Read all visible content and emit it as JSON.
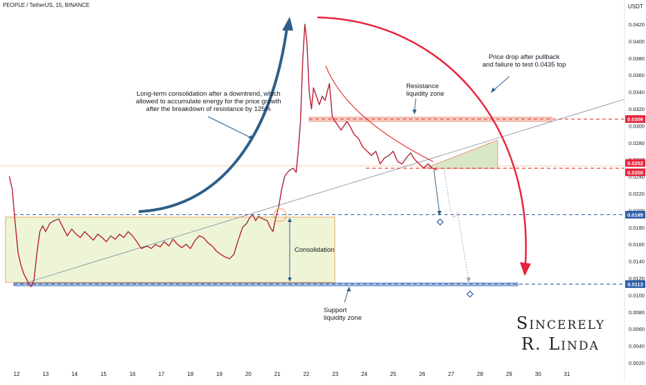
{
  "header": {
    "symbol": "PEOPLE / TetherUS, 15, BINANCE",
    "currency": "USDT"
  },
  "colors": {
    "candle_up": "#089981",
    "candle_down": "#f23645",
    "price_line": "#b71c33",
    "resistance_line": "#e53935",
    "support_line": "#2f5fa8",
    "consolidation_fill": "#eef5d6",
    "consolidation_border": "#f2a55b",
    "resistance_zone_fill": "#f8d0c8",
    "triangle_fill": "#d8e7c4",
    "arrow_blue": "#2e5f8a",
    "arrow_red": "#e8233c",
    "trendline": "#8a93a6"
  },
  "chart_data": {
    "type": "line",
    "title": "PEOPLE / TetherUS, 15, BINANCE",
    "ylabel": "USDT",
    "ylim": [
      0.002,
      0.044
    ],
    "y_ticks": [
      "0.0420",
      "0.0400",
      "0.0380",
      "0.0360",
      "0.0340",
      "0.0320",
      "0.0300",
      "0.0280",
      "0.0260",
      "0.0240",
      "0.0220",
      "0.0200",
      "0.0180",
      "0.0160",
      "0.0140",
      "0.0120",
      "0.0100",
      "0.0080",
      "0.0060",
      "0.0040",
      "0.0020"
    ],
    "y_tick_values": [
      0.042,
      0.04,
      0.038,
      0.036,
      0.034,
      0.032,
      0.03,
      0.028,
      0.026,
      0.024,
      0.022,
      0.02,
      0.018,
      0.016,
      0.014,
      0.012,
      0.01,
      0.008,
      0.006,
      0.004,
      0.002
    ],
    "x_ticks": [
      "12",
      "13",
      "14",
      "15",
      "16",
      "17",
      "18",
      "19",
      "20",
      "21",
      "22",
      "23",
      "24",
      "25",
      "26",
      "27",
      "28",
      "29",
      "30",
      "31"
    ],
    "x_tick_values": [
      12,
      13,
      14,
      15,
      16,
      17,
      18,
      19,
      20,
      21,
      22,
      23,
      24,
      25,
      26,
      27,
      28,
      29,
      30,
      31
    ],
    "xlim": [
      11.75,
      32.4
    ],
    "series": [
      {
        "x": [
          11.75,
          11.85,
          11.95,
          12.05,
          12.15,
          12.25,
          12.4,
          12.5,
          12.6,
          12.7,
          12.8,
          12.9,
          13.0,
          13.15,
          13.3,
          13.45,
          13.6,
          13.75,
          13.9,
          14.05,
          14.2,
          14.35,
          14.5,
          14.65,
          14.8,
          14.95,
          15.1,
          15.25,
          15.4,
          15.55,
          15.7,
          15.85,
          16.0,
          16.15,
          16.3,
          16.5,
          16.65,
          16.8,
          16.95,
          17.1,
          17.25,
          17.4,
          17.55,
          17.7,
          17.85,
          18.0,
          18.15,
          18.3,
          18.45,
          18.6,
          18.75,
          18.9,
          19.05,
          19.2,
          19.35,
          19.5,
          19.65,
          19.8,
          19.95,
          20.05,
          20.15,
          20.25,
          20.35,
          20.5,
          20.65,
          20.75,
          20.85,
          20.95,
          21.05,
          21.15,
          21.25,
          21.35,
          21.45,
          21.55,
          21.65,
          21.72,
          21.8,
          21.88,
          21.95,
          22.02,
          22.1,
          22.18,
          22.25,
          22.35,
          22.45,
          22.55,
          22.65,
          22.72,
          22.8,
          22.9,
          23.0,
          23.1,
          23.2,
          23.3,
          23.4,
          23.5,
          23.65,
          23.8,
          23.95,
          24.1,
          24.25,
          24.4,
          24.55,
          24.7,
          24.85,
          25.0,
          25.15,
          25.3,
          25.45,
          25.6,
          25.75,
          25.9,
          26.05,
          26.2,
          26.35,
          26.5
        ],
        "y": [
          0.024,
          0.0225,
          0.0185,
          0.015,
          0.0135,
          0.0125,
          0.0115,
          0.011,
          0.0118,
          0.015,
          0.0175,
          0.0182,
          0.0175,
          0.0185,
          0.0188,
          0.019,
          0.018,
          0.017,
          0.0178,
          0.0172,
          0.0168,
          0.0175,
          0.017,
          0.0165,
          0.0172,
          0.0168,
          0.0163,
          0.017,
          0.0166,
          0.0172,
          0.0168,
          0.0175,
          0.017,
          0.0163,
          0.0155,
          0.0158,
          0.0155,
          0.016,
          0.0157,
          0.0163,
          0.0158,
          0.0166,
          0.016,
          0.0156,
          0.016,
          0.0155,
          0.0164,
          0.017,
          0.0168,
          0.0162,
          0.0158,
          0.0152,
          0.0148,
          0.0145,
          0.0143,
          0.0148,
          0.0165,
          0.018,
          0.0185,
          0.0192,
          0.0195,
          0.0188,
          0.0193,
          0.019,
          0.0188,
          0.018,
          0.0175,
          0.0192,
          0.0205,
          0.0225,
          0.024,
          0.0245,
          0.0248,
          0.025,
          0.0245,
          0.027,
          0.0305,
          0.038,
          0.042,
          0.04,
          0.034,
          0.032,
          0.0345,
          0.0335,
          0.0325,
          0.0335,
          0.033,
          0.034,
          0.035,
          0.031,
          0.0305,
          0.03,
          0.0295,
          0.03,
          0.0305,
          0.03,
          0.029,
          0.0285,
          0.0275,
          0.027,
          0.0265,
          0.027,
          0.0255,
          0.0262,
          0.0265,
          0.027,
          0.0258,
          0.0255,
          0.0262,
          0.0268,
          0.026,
          0.0255,
          0.025,
          0.0255,
          0.025,
          0.0248
        ]
      }
    ],
    "levels": [
      {
        "label": "0.0308",
        "value": 0.0308
      },
      {
        "label": "0.0252",
        "value": 0.0252
      },
      {
        "label": "0.0250",
        "value": 0.025
      },
      {
        "label": "0.0195",
        "value": 0.0195
      },
      {
        "label": "0.0113",
        "value": 0.0113
      }
    ],
    "annotations": [
      {
        "key": "long_term",
        "text": "Long-term consolidation after a downtrend, which\nallowed to accumulate energy for the price growth\nafter the breakdown of resistance by 125%"
      },
      {
        "key": "price_drop",
        "text": "Price drop after pullback\nand failure to test 0.0435 top"
      },
      {
        "key": "resistance",
        "text": "Resistance\nliquidity zone"
      },
      {
        "key": "consolidation",
        "text": "Consolidation"
      },
      {
        "key": "support",
        "text": "Support\nliquidity zone"
      }
    ],
    "signature": [
      "Sincerely",
      "R. Linda"
    ]
  }
}
